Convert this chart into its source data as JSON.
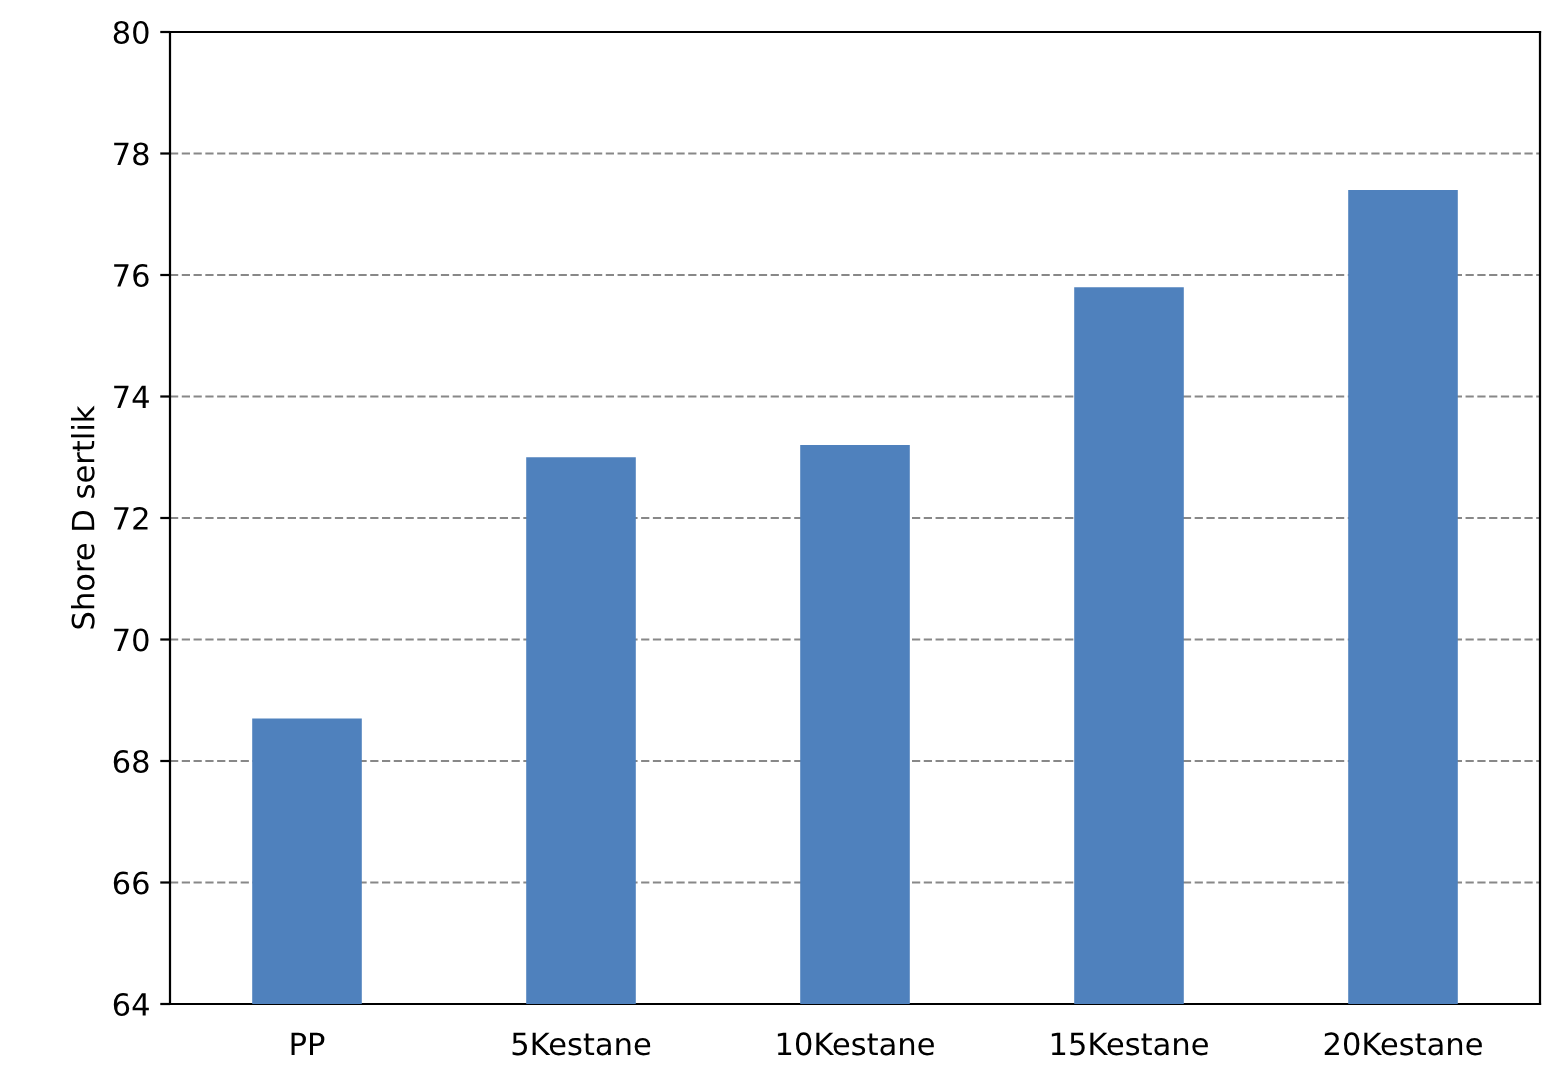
{
  "chart_data": {
    "type": "bar",
    "ylabel": "Shore D sertlik",
    "categories": [
      "PP",
      "5Kestane",
      "10Kestane",
      "15Kestane",
      "20Kestane"
    ],
    "values": [
      68.7,
      73.0,
      73.2,
      75.8,
      77.4
    ],
    "color": "#4f81bd",
    "ylim": [
      64,
      80
    ],
    "yticks": [
      64,
      66,
      68,
      70,
      72,
      74,
      76,
      78,
      80
    ],
    "grid": "y",
    "line_style": "dashed"
  }
}
